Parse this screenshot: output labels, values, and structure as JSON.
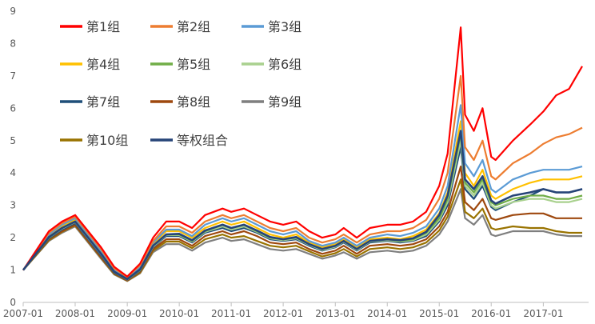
{
  "chart_data": {
    "type": "line",
    "title": "",
    "xlabel": "",
    "ylabel": "",
    "ylim": [
      0,
      9
    ],
    "yticks": [
      "0",
      "1",
      "2",
      "3",
      "4",
      "5",
      "6",
      "7",
      "8",
      "9"
    ],
    "xticks": [
      "2007-01",
      "2008-01",
      "2009-01",
      "2010-01",
      "2011-01",
      "2012-01",
      "2013-01",
      "2014-01",
      "2015-01",
      "2016-01",
      "2017-01"
    ],
    "grid": false,
    "legend_position": "top-left",
    "x": [
      "2007-01",
      "2007-07",
      "2007-10",
      "2008-01",
      "2008-04",
      "2008-07",
      "2008-10",
      "2009-01",
      "2009-04",
      "2009-07",
      "2009-10",
      "2010-01",
      "2010-04",
      "2010-07",
      "2010-11",
      "2011-01",
      "2011-04",
      "2011-07",
      "2011-10",
      "2012-01",
      "2012-04",
      "2012-07",
      "2012-10",
      "2013-01",
      "2013-03",
      "2013-06",
      "2013-09",
      "2014-01",
      "2014-04",
      "2014-07",
      "2014-10",
      "2015-01",
      "2015-03",
      "2015-06",
      "2015-07",
      "2015-09",
      "2015-11",
      "2016-01",
      "2016-02",
      "2016-06",
      "2016-10",
      "2017-01",
      "2017-04",
      "2017-07",
      "2017-10"
    ],
    "series": [
      {
        "name": "第1组",
        "color": "#ff0000",
        "values": [
          1.0,
          2.2,
          2.5,
          2.7,
          2.2,
          1.7,
          1.1,
          0.8,
          1.2,
          2.0,
          2.5,
          2.5,
          2.3,
          2.7,
          2.9,
          2.8,
          2.9,
          2.7,
          2.5,
          2.4,
          2.5,
          2.2,
          2.0,
          2.1,
          2.3,
          2.0,
          2.3,
          2.4,
          2.4,
          2.5,
          2.8,
          3.6,
          4.6,
          8.5,
          5.8,
          5.3,
          6.0,
          4.5,
          4.4,
          5.0,
          5.5,
          5.9,
          6.4,
          6.6,
          7.3
        ]
      },
      {
        "name": "第2组",
        "color": "#ed7d31",
        "values": [
          1.0,
          2.15,
          2.45,
          2.65,
          2.15,
          1.65,
          1.05,
          0.78,
          1.15,
          1.9,
          2.35,
          2.35,
          2.15,
          2.5,
          2.7,
          2.6,
          2.7,
          2.5,
          2.3,
          2.2,
          2.3,
          2.0,
          1.85,
          1.95,
          2.1,
          1.85,
          2.1,
          2.2,
          2.2,
          2.3,
          2.55,
          3.2,
          4.0,
          7.0,
          4.8,
          4.4,
          5.0,
          3.9,
          3.8,
          4.3,
          4.6,
          4.9,
          5.1,
          5.2,
          5.4
        ]
      },
      {
        "name": "第3组",
        "color": "#5b9bd5",
        "values": [
          1.0,
          2.1,
          2.4,
          2.6,
          2.1,
          1.6,
          1.0,
          0.76,
          1.1,
          1.85,
          2.25,
          2.25,
          2.05,
          2.4,
          2.6,
          2.5,
          2.6,
          2.4,
          2.2,
          2.1,
          2.2,
          1.9,
          1.75,
          1.85,
          2.0,
          1.75,
          2.0,
          2.1,
          2.05,
          2.15,
          2.35,
          2.9,
          3.6,
          6.1,
          4.3,
          3.9,
          4.4,
          3.5,
          3.4,
          3.8,
          4.0,
          4.1,
          4.1,
          4.1,
          4.2
        ]
      },
      {
        "name": "第4组",
        "color": "#ffc000",
        "values": [
          1.0,
          2.05,
          2.35,
          2.55,
          2.05,
          1.55,
          0.98,
          0.74,
          1.05,
          1.8,
          2.2,
          2.2,
          2.0,
          2.3,
          2.5,
          2.4,
          2.5,
          2.3,
          2.1,
          2.0,
          2.1,
          1.85,
          1.7,
          1.8,
          1.95,
          1.7,
          1.95,
          2.0,
          1.95,
          2.05,
          2.25,
          2.75,
          3.4,
          5.6,
          4.0,
          3.6,
          4.1,
          3.3,
          3.2,
          3.5,
          3.7,
          3.8,
          3.8,
          3.8,
          3.9
        ]
      },
      {
        "name": "第5组",
        "color": "#70ad47",
        "values": [
          1.0,
          2.0,
          2.3,
          2.5,
          2.0,
          1.5,
          0.95,
          0.72,
          1.0,
          1.75,
          2.1,
          2.1,
          1.9,
          2.2,
          2.4,
          2.3,
          2.4,
          2.2,
          2.0,
          1.95,
          2.0,
          1.8,
          1.65,
          1.75,
          1.9,
          1.65,
          1.9,
          1.95,
          1.9,
          1.95,
          2.15,
          2.6,
          3.2,
          5.2,
          3.7,
          3.4,
          3.8,
          3.1,
          3.0,
          3.2,
          3.3,
          3.3,
          3.2,
          3.2,
          3.3
        ]
      },
      {
        "name": "第6组",
        "color": "#a9d18e",
        "values": [
          1.0,
          2.0,
          2.28,
          2.48,
          1.98,
          1.48,
          0.94,
          0.71,
          1.0,
          1.72,
          2.08,
          2.08,
          1.88,
          2.18,
          2.35,
          2.25,
          2.35,
          2.18,
          1.98,
          1.92,
          1.98,
          1.78,
          1.62,
          1.72,
          1.88,
          1.62,
          1.88,
          1.92,
          1.88,
          1.92,
          2.1,
          2.55,
          3.1,
          5.0,
          3.6,
          3.3,
          3.7,
          3.0,
          2.9,
          3.1,
          3.2,
          3.2,
          3.1,
          3.1,
          3.2
        ]
      },
      {
        "name": "第7组",
        "color": "#1f4e79",
        "values": [
          1.0,
          1.98,
          2.25,
          2.45,
          1.95,
          1.45,
          0.92,
          0.7,
          0.98,
          1.7,
          2.05,
          2.05,
          1.85,
          2.15,
          2.3,
          2.2,
          2.3,
          2.15,
          1.95,
          1.9,
          1.95,
          1.75,
          1.6,
          1.7,
          1.85,
          1.6,
          1.85,
          1.9,
          1.85,
          1.9,
          2.05,
          2.5,
          3.0,
          4.8,
          3.5,
          3.2,
          3.6,
          2.95,
          2.85,
          3.1,
          3.3,
          3.5,
          3.4,
          3.4,
          3.5
        ]
      },
      {
        "name": "第8组",
        "color": "#9e480e",
        "values": [
          1.0,
          1.95,
          2.2,
          2.4,
          1.9,
          1.4,
          0.9,
          0.68,
          0.95,
          1.65,
          1.95,
          1.95,
          1.75,
          2.05,
          2.2,
          2.1,
          2.2,
          2.05,
          1.85,
          1.8,
          1.85,
          1.65,
          1.5,
          1.6,
          1.75,
          1.5,
          1.75,
          1.8,
          1.75,
          1.8,
          1.95,
          2.35,
          2.8,
          4.2,
          3.1,
          2.85,
          3.2,
          2.6,
          2.55,
          2.7,
          2.75,
          2.75,
          2.6,
          2.6,
          2.6
        ]
      },
      {
        "name": "第9组",
        "color": "#7f7f7f",
        "values": [
          1.0,
          1.9,
          2.15,
          2.35,
          1.85,
          1.35,
          0.86,
          0.66,
          0.9,
          1.55,
          1.8,
          1.8,
          1.6,
          1.85,
          2.0,
          1.9,
          1.95,
          1.8,
          1.65,
          1.6,
          1.65,
          1.5,
          1.35,
          1.45,
          1.55,
          1.35,
          1.55,
          1.6,
          1.55,
          1.6,
          1.75,
          2.1,
          2.5,
          3.5,
          2.6,
          2.4,
          2.7,
          2.1,
          2.05,
          2.2,
          2.2,
          2.2,
          2.1,
          2.05,
          2.05
        ]
      },
      {
        "name": "第10组",
        "color": "#997300",
        "values": [
          1.0,
          1.92,
          2.18,
          2.38,
          1.88,
          1.38,
          0.88,
          0.67,
          0.92,
          1.6,
          1.88,
          1.88,
          1.68,
          1.95,
          2.1,
          2.0,
          2.05,
          1.9,
          1.75,
          1.7,
          1.75,
          1.58,
          1.42,
          1.52,
          1.65,
          1.42,
          1.65,
          1.7,
          1.65,
          1.7,
          1.85,
          2.22,
          2.65,
          3.8,
          2.8,
          2.6,
          2.9,
          2.3,
          2.25,
          2.35,
          2.3,
          2.3,
          2.2,
          2.15,
          2.15
        ]
      },
      {
        "name": "等权组合",
        "color": "#264478",
        "values": [
          1.0,
          2.02,
          2.3,
          2.5,
          2.0,
          1.5,
          0.95,
          0.72,
          1.02,
          1.75,
          2.1,
          2.12,
          1.92,
          2.22,
          2.4,
          2.3,
          2.4,
          2.22,
          2.02,
          1.95,
          2.02,
          1.8,
          1.65,
          1.75,
          1.9,
          1.65,
          1.9,
          1.95,
          1.92,
          1.98,
          2.18,
          2.7,
          3.3,
          5.3,
          3.8,
          3.5,
          3.9,
          3.15,
          3.05,
          3.3,
          3.4,
          3.5,
          3.4,
          3.4,
          3.5
        ]
      }
    ]
  }
}
